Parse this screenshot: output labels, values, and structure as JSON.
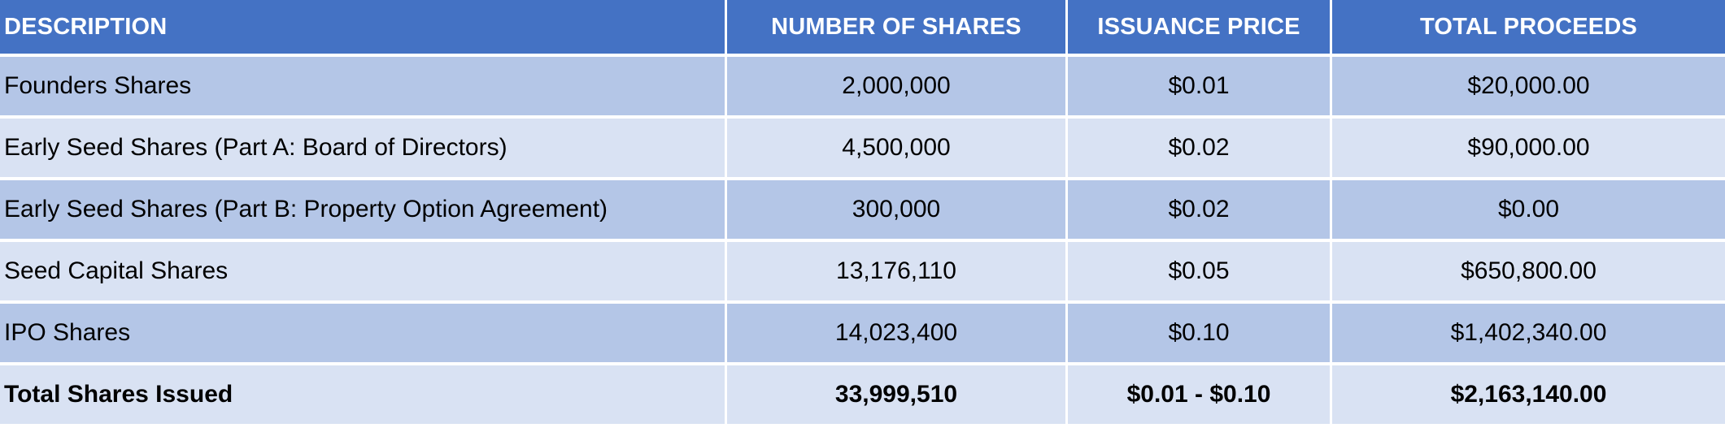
{
  "table": {
    "headers": [
      "DESCRIPTION",
      "NUMBER OF SHARES",
      "ISSUANCE PRICE",
      "TOTAL PROCEEDS"
    ],
    "rows": [
      [
        "Founders Shares",
        "2,000,000",
        "$0.01",
        "$20,000.00"
      ],
      [
        "Early Seed Shares (Part A: Board of Directors)",
        "4,500,000",
        "$0.02",
        "$90,000.00"
      ],
      [
        "Early Seed Shares (Part B: Property Option Agreement)",
        "300,000",
        "$0.02",
        "$0.00"
      ],
      [
        "Seed Capital Shares",
        "13,176,110",
        "$0.05",
        "$650,800.00"
      ],
      [
        "IPO Shares",
        "14,023,400",
        "$0.10",
        "$1,402,340.00"
      ]
    ],
    "total": [
      "Total Shares Issued",
      "33,999,510",
      "$0.01 - $0.10",
      "$2,163,140.00"
    ]
  },
  "colors": {
    "header_bg": "#4472c4",
    "row_dark": "#b4c6e7",
    "row_light": "#d9e2f3"
  }
}
